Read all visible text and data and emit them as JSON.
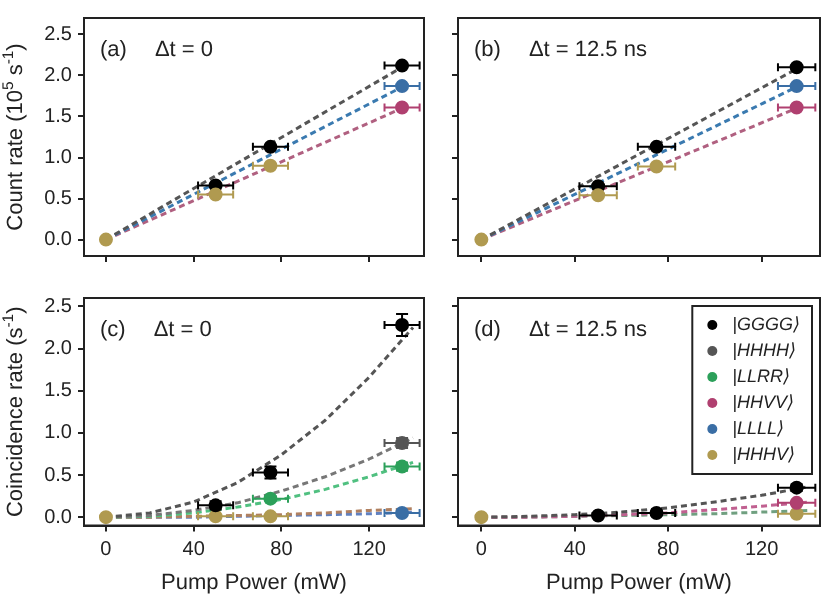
{
  "chart_data": [
    {
      "type": "scatter",
      "annotations": [
        "(a)",
        "Δt = 0"
      ],
      "ylabel": "Count rate (10$^{5}$ s$^{-1}$)",
      "xlim": [
        -10,
        145
      ],
      "xticks": [
        0,
        40,
        80,
        120
      ],
      "ylim": [
        -0.2,
        2.7
      ],
      "yticks": [
        {
          "value": 0,
          "label": "0.0"
        },
        0.5,
        {
          "value": 1,
          "label": "1.0"
        },
        1.5,
        {
          "value": 2,
          "label": "2.0"
        },
        2.5
      ],
      "tick_labels": "y",
      "marker": "circle",
      "series": [
        {
          "type": "line",
          "color": "#555555",
          "line_style": "dashed",
          "marker": "none",
          "x": [
            0,
            135
          ],
          "values": [
            0,
            2.1
          ]
        },
        {
          "type": "line",
          "color": "#3a7ab0",
          "line_style": "dashed",
          "marker": "none",
          "x": [
            0,
            135
          ],
          "values": [
            0,
            1.86
          ]
        },
        {
          "type": "line",
          "color": "#b06080",
          "line_style": "dashed",
          "marker": "none",
          "x": [
            0,
            135
          ],
          "values": [
            0,
            1.6
          ]
        },
        {
          "color": "#b04070",
          "x": [
            135
          ],
          "values": [
            1.61
          ],
          "xerrors": [
            8
          ]
        },
        {
          "color": "#b09a50",
          "x": [
            0,
            50,
            75
          ],
          "values": [
            0,
            0.55,
            0.9
          ],
          "xerrors": [
            null,
            8,
            8
          ]
        },
        {
          "color": "#3a6ea5",
          "x": [
            135
          ],
          "values": [
            1.87
          ],
          "xerrors": [
            8
          ]
        },
        {
          "color": "#000000",
          "x": [
            50,
            75,
            135
          ],
          "values": [
            0.66,
            1.13,
            2.12
          ],
          "xerrors": [
            8,
            8,
            8
          ]
        }
      ]
    },
    {
      "type": "scatter",
      "annotations": [
        "(b)",
        "Δt = 12.5 ns"
      ],
      "xlim": [
        -10,
        145
      ],
      "xticks": [
        0,
        40,
        80,
        120
      ],
      "ylim": [
        -0.2,
        2.7
      ],
      "yticks": [
        0,
        0.5,
        1,
        1.5,
        2,
        2.5
      ],
      "tick_labels": false,
      "marker": "circle",
      "series": [
        {
          "type": "line",
          "color": "#555555",
          "line_style": "dashed",
          "marker": "none",
          "x": [
            0,
            135
          ],
          "values": [
            0,
            2.08
          ]
        },
        {
          "type": "line",
          "color": "#3a7ab0",
          "line_style": "dashed",
          "marker": "none",
          "x": [
            0,
            135
          ],
          "values": [
            0,
            1.86
          ]
        },
        {
          "type": "line",
          "color": "#b06080",
          "line_style": "dashed",
          "marker": "none",
          "x": [
            0,
            135
          ],
          "values": [
            0,
            1.6
          ]
        },
        {
          "color": "#b04070",
          "x": [
            135
          ],
          "values": [
            1.61
          ],
          "xerrors": [
            8
          ]
        },
        {
          "color": "#b09a50",
          "x": [
            0,
            50,
            75
          ],
          "values": [
            0,
            0.54,
            0.89
          ],
          "xerrors": [
            null,
            8,
            8
          ]
        },
        {
          "color": "#3a6ea5",
          "x": [
            135
          ],
          "values": [
            1.87
          ],
          "xerrors": [
            8
          ]
        },
        {
          "color": "#000000",
          "x": [
            50,
            75,
            135
          ],
          "values": [
            0.65,
            1.13,
            2.1
          ],
          "xerrors": [
            8,
            8,
            8
          ]
        }
      ]
    },
    {
      "type": "scatter",
      "annotations": [
        "(c)",
        "Δt = 0"
      ],
      "xlabel": "Pump Power (mW)",
      "ylabel": "Coincidence rate (s$^{-1}$)",
      "xlim": [
        -10,
        145
      ],
      "xticks": [
        0,
        40,
        80,
        120
      ],
      "ylim": [
        -0.1,
        2.6
      ],
      "yticks": [
        {
          "value": 0,
          "label": "0.0"
        },
        0.5,
        {
          "value": 1,
          "label": "1.0"
        },
        1.5,
        {
          "value": 2,
          "label": "2.0"
        },
        2.5
      ],
      "marker": "circle",
      "series": [
        {
          "type": "line",
          "color": "#555555",
          "line_style": "dashed",
          "marker": "none",
          "x": [
            0,
            20,
            40,
            60,
            80,
            100,
            120,
            140
          ],
          "values": [
            0,
            0.05,
            0.18,
            0.41,
            0.74,
            1.15,
            1.66,
            2.25
          ]
        },
        {
          "type": "line",
          "color": "#777777",
          "line_style": "dashed",
          "marker": "none",
          "x": [
            0,
            20,
            40,
            60,
            80,
            100,
            120,
            140
          ],
          "values": [
            0,
            0.02,
            0.08,
            0.17,
            0.31,
            0.48,
            0.69,
            0.94
          ]
        },
        {
          "type": "line",
          "color": "#50c080",
          "line_style": "dashed",
          "marker": "none",
          "x": [
            0,
            20,
            40,
            60,
            80,
            100,
            120,
            140
          ],
          "values": [
            0,
            0.01,
            0.05,
            0.12,
            0.21,
            0.33,
            0.48,
            0.65
          ]
        },
        {
          "type": "line",
          "color": "#b08060",
          "line_style": "dashed",
          "marker": "none",
          "x": [
            0,
            20,
            40,
            60,
            80,
            100,
            120,
            140
          ],
          "values": [
            0,
            0,
            0.01,
            0.02,
            0.03,
            0.05,
            0.08,
            0.1
          ]
        },
        {
          "type": "line",
          "color": "#6080c0",
          "line_style": "dashed",
          "marker": "none",
          "x": [
            0,
            20,
            40,
            60,
            80,
            100,
            120,
            140
          ],
          "values": [
            0,
            0,
            0,
            0.01,
            0.02,
            0.03,
            0.04,
            0.06
          ]
        },
        {
          "color": "#000000",
          "x": [
            50,
            75,
            135
          ],
          "values": [
            0.14,
            0.53,
            2.28
          ],
          "xerrors": [
            8,
            8,
            8
          ],
          "errors": [
            0.05,
            0.07,
            0.13
          ]
        },
        {
          "color": "#555555",
          "x": [
            135
          ],
          "values": [
            0.88
          ],
          "xerrors": [
            8
          ],
          "errors": [
            0.06
          ]
        },
        {
          "color": "#2ca05a",
          "x": [
            75,
            135
          ],
          "values": [
            0.22,
            0.6
          ],
          "xerrors": [
            8,
            8
          ],
          "errors": [
            0.03,
            0.05
          ]
        },
        {
          "color": "#3a6ea5",
          "x": [
            135
          ],
          "values": [
            0.05
          ],
          "xerrors": [
            8
          ]
        },
        {
          "color": "#b09a50",
          "x": [
            0,
            50,
            75
          ],
          "values": [
            0,
            0.01,
            0.01
          ],
          "xerrors": [
            null,
            8,
            8
          ]
        }
      ]
    },
    {
      "type": "scatter",
      "annotations": [
        "(d)",
        "Δt = 12.5 ns"
      ],
      "xlabel": "Pump Power (mW)",
      "xlim": [
        -10,
        145
      ],
      "xticks": [
        0,
        40,
        80,
        120
      ],
      "ylim": [
        -0.1,
        2.6
      ],
      "yticks": [
        0,
        0.5,
        1,
        1.5,
        2,
        2.5
      ],
      "tick_labels": "x",
      "marker": "circle",
      "legend": "top right",
      "series": [
        {
          "type": "line",
          "color": "#555555",
          "line_style": "dashed",
          "marker": "none",
          "x": [
            0,
            20,
            40,
            60,
            80,
            100,
            120,
            140
          ],
          "values": [
            0,
            0.01,
            0.03,
            0.06,
            0.11,
            0.18,
            0.26,
            0.36
          ]
        },
        {
          "type": "line",
          "color": "#c06090",
          "line_style": "dashed",
          "marker": "none",
          "x": [
            0,
            20,
            40,
            60,
            80,
            100,
            120,
            140
          ],
          "values": [
            0,
            0,
            0.01,
            0.03,
            0.05,
            0.09,
            0.13,
            0.18
          ]
        },
        {
          "type": "line",
          "color": "#70a080",
          "line_style": "dashed",
          "marker": "none",
          "x": [
            0,
            20,
            40,
            60,
            80,
            100,
            120,
            140
          ],
          "values": [
            0,
            0,
            0.01,
            0.02,
            0.03,
            0.04,
            0.06,
            0.08
          ]
        },
        {
          "name": "|GGGG⟩",
          "color": "#000000",
          "x": [
            50,
            75,
            135
          ],
          "values": [
            0.02,
            0.05,
            0.35
          ],
          "xerrors": [
            8,
            8,
            8
          ],
          "errors": [
            null,
            null,
            0.04
          ]
        },
        {
          "name": "|HHHH⟩",
          "color": "#555555"
        },
        {
          "name": "|LLRR⟩",
          "color": "#2ca05a"
        },
        {
          "name": "|HHVV⟩",
          "color": "#b04070",
          "x": [
            135
          ],
          "values": [
            0.17
          ],
          "xerrors": [
            8
          ]
        },
        {
          "name": "|LLLL⟩",
          "color": "#3a6ea5"
        },
        {
          "name": "|HHHV⟩",
          "color": "#b09a50",
          "x": [
            0,
            135
          ],
          "values": [
            0,
            0.04
          ],
          "xerrors": [
            null,
            8
          ]
        }
      ]
    }
  ]
}
